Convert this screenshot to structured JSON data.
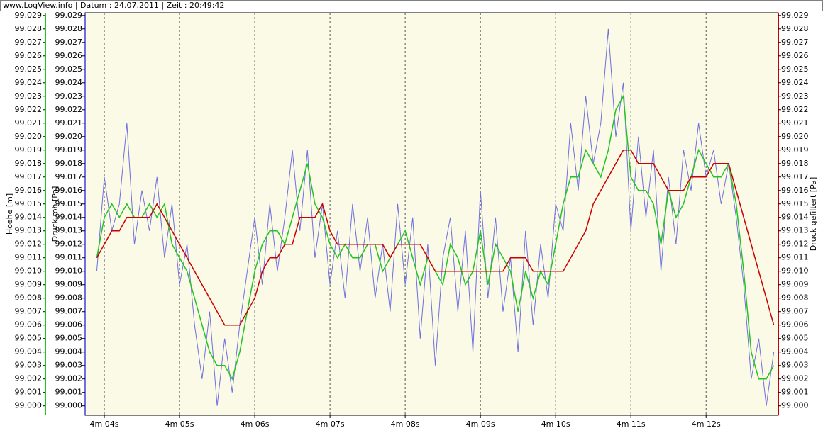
{
  "chart_data": {
    "type": "line",
    "title": "www.LogView.info  |  Datum : 24.07.2011  |  Zeit : 20:49:42",
    "y_label": "Hoehe [m]",
    "y_label_2": "Druck roh [Pa]",
    "y2_label": "Druck gefiltert [Pa]",
    "background": "#fafae6",
    "xlim": [
      243.745,
      252.96
    ],
    "xticks": [
      {
        "value": 244,
        "label": "4m 04s"
      },
      {
        "value": 245,
        "label": "4m 05s"
      },
      {
        "value": 246,
        "label": "4m 06s"
      },
      {
        "value": 247,
        "label": "4m 07s"
      },
      {
        "value": 248,
        "label": "4m 08s"
      },
      {
        "value": 249,
        "label": "4m 09s"
      },
      {
        "value": 250,
        "label": "4m 10s"
      },
      {
        "value": 251,
        "label": "4m 11s"
      },
      {
        "value": 252,
        "label": "4m 12s"
      }
    ],
    "ylim": [
      98.9993,
      99.0292
    ],
    "yticks": [
      {
        "value": 99.0,
        "label": "99.000"
      },
      {
        "value": 99.001,
        "label": "99.001"
      },
      {
        "value": 99.002,
        "label": "99.002"
      },
      {
        "value": 99.003,
        "label": "99.003"
      },
      {
        "value": 99.004,
        "label": "99.004"
      },
      {
        "value": 99.005,
        "label": "99.005"
      },
      {
        "value": 99.006,
        "label": "99.006"
      },
      {
        "value": 99.007,
        "label": "99.007"
      },
      {
        "value": 99.008,
        "label": "99.008"
      },
      {
        "value": 99.009,
        "label": "99.009"
      },
      {
        "value": 99.01,
        "label": "99.010"
      },
      {
        "value": 99.011,
        "label": "99.011"
      },
      {
        "value": 99.012,
        "label": "99.012"
      },
      {
        "value": 99.013,
        "label": "99.013"
      },
      {
        "value": 99.014,
        "label": "99.014"
      },
      {
        "value": 99.015,
        "label": "99.015"
      },
      {
        "value": 99.016,
        "label": "99.016"
      },
      {
        "value": 99.017,
        "label": "99.017"
      },
      {
        "value": 99.018,
        "label": "99.018"
      },
      {
        "value": 99.019,
        "label": "99.019"
      },
      {
        "value": 99.02,
        "label": "99.020"
      },
      {
        "value": 99.021,
        "label": "99.021"
      },
      {
        "value": 99.022,
        "label": "99.022"
      },
      {
        "value": 99.023,
        "label": "99.023"
      },
      {
        "value": 99.024,
        "label": "99.024"
      },
      {
        "value": 99.025,
        "label": "99.025"
      },
      {
        "value": 99.026,
        "label": "99.026"
      },
      {
        "value": 99.027,
        "label": "99.027"
      },
      {
        "value": 99.028,
        "label": "99.028"
      },
      {
        "value": 99.029,
        "label": "99.029"
      }
    ],
    "y2lim": [
      98.9993,
      99.0292
    ],
    "y2ticks": [
      {
        "value": 99.0,
        "label": "99.000"
      },
      {
        "value": 99.001,
        "label": "99.001"
      },
      {
        "value": 99.002,
        "label": "99.002"
      },
      {
        "value": 99.003,
        "label": "99.003"
      },
      {
        "value": 99.004,
        "label": "99.004"
      },
      {
        "value": 99.005,
        "label": "99.005"
      },
      {
        "value": 99.006,
        "label": "99.006"
      },
      {
        "value": 99.007,
        "label": "99.007"
      },
      {
        "value": 99.008,
        "label": "99.008"
      },
      {
        "value": 99.009,
        "label": "99.009"
      },
      {
        "value": 99.01,
        "label": "99.010"
      },
      {
        "value": 99.011,
        "label": "99.011"
      },
      {
        "value": 99.012,
        "label": "99.012"
      },
      {
        "value": 99.013,
        "label": "99.013"
      },
      {
        "value": 99.014,
        "label": "99.014"
      },
      {
        "value": 99.015,
        "label": "99.015"
      },
      {
        "value": 99.016,
        "label": "99.016"
      },
      {
        "value": 99.017,
        "label": "99.017"
      },
      {
        "value": 99.018,
        "label": "99.018"
      },
      {
        "value": 99.019,
        "label": "99.019"
      },
      {
        "value": 99.02,
        "label": "99.020"
      },
      {
        "value": 99.021,
        "label": "99.021"
      },
      {
        "value": 99.022,
        "label": "99.022"
      },
      {
        "value": 99.023,
        "label": "99.023"
      },
      {
        "value": 99.024,
        "label": "99.024"
      },
      {
        "value": 99.025,
        "label": "99.025"
      },
      {
        "value": 99.026,
        "label": "99.026"
      },
      {
        "value": 99.027,
        "label": "99.027"
      },
      {
        "value": 99.028,
        "label": "99.028"
      },
      {
        "value": 99.029,
        "label": "99.029"
      }
    ],
    "x": [
      243.9,
      244.0,
      244.1,
      244.2,
      244.3,
      244.4,
      244.5,
      244.6,
      244.7,
      244.8,
      244.9,
      245.0,
      245.1,
      245.2,
      245.3,
      245.4,
      245.5,
      245.6,
      245.7,
      245.8,
      245.9,
      246.0,
      246.1,
      246.2,
      246.3,
      246.4,
      246.5,
      246.6,
      246.7,
      246.8,
      246.9,
      247.0,
      247.1,
      247.2,
      247.3,
      247.4,
      247.5,
      247.6,
      247.7,
      247.8,
      247.9,
      248.0,
      248.1,
      248.2,
      248.3,
      248.4,
      248.5,
      248.6,
      248.7,
      248.8,
      248.9,
      249.0,
      249.1,
      249.2,
      249.3,
      249.4,
      249.5,
      249.6,
      249.7,
      249.8,
      249.9,
      250.0,
      250.1,
      250.2,
      250.3,
      250.4,
      250.5,
      250.6,
      250.7,
      250.8,
      250.9,
      251.0,
      251.1,
      251.2,
      251.3,
      251.4,
      251.5,
      251.6,
      251.7,
      251.8,
      251.9,
      252.0,
      252.1,
      252.2,
      252.3,
      252.4,
      252.5,
      252.6,
      252.7,
      252.8,
      252.9
    ],
    "series": [
      {
        "name": "Druck roh [Pa]",
        "color": "#6f6fe0",
        "axis": "y",
        "values": [
          99.01,
          99.017,
          99.013,
          99.015,
          99.021,
          99.012,
          99.016,
          99.013,
          99.017,
          99.011,
          99.015,
          99.009,
          99.012,
          99.006,
          99.002,
          99.007,
          99.0,
          99.005,
          99.001,
          99.006,
          99.01,
          99.014,
          99.009,
          99.015,
          99.01,
          99.014,
          99.019,
          99.013,
          99.019,
          99.011,
          99.015,
          99.009,
          99.013,
          99.008,
          99.015,
          99.01,
          99.014,
          99.008,
          99.012,
          99.007,
          99.015,
          99.009,
          99.014,
          99.005,
          99.012,
          99.003,
          99.011,
          99.014,
          99.007,
          99.013,
          99.004,
          99.016,
          99.008,
          99.014,
          99.007,
          99.011,
          99.004,
          99.013,
          99.006,
          99.012,
          99.008,
          99.015,
          99.013,
          99.021,
          99.016,
          99.023,
          99.018,
          99.021,
          99.028,
          99.02,
          99.024,
          99.013,
          99.02,
          99.014,
          99.019,
          99.01,
          99.017,
          99.012,
          99.019,
          99.016,
          99.021,
          99.017,
          99.019,
          99.015,
          99.018,
          99.014,
          99.009,
          99.002,
          99.005,
          99.0,
          99.004
        ]
      },
      {
        "name": "Hoehe [m]",
        "color": "#22c422",
        "axis": "y",
        "values": [
          99.011,
          99.014,
          99.015,
          99.014,
          99.015,
          99.014,
          99.014,
          99.015,
          99.014,
          99.015,
          99.012,
          99.011,
          99.01,
          99.008,
          99.006,
          99.004,
          99.003,
          99.003,
          99.002,
          99.004,
          99.007,
          99.01,
          99.012,
          99.013,
          99.013,
          99.012,
          99.014,
          99.016,
          99.018,
          99.015,
          99.014,
          99.012,
          99.011,
          99.012,
          99.011,
          99.011,
          99.012,
          99.012,
          99.01,
          99.011,
          99.012,
          99.013,
          99.011,
          99.009,
          99.011,
          99.01,
          99.009,
          99.012,
          99.011,
          99.009,
          99.01,
          99.013,
          99.009,
          99.012,
          99.011,
          99.01,
          99.007,
          99.01,
          99.008,
          99.01,
          99.009,
          99.012,
          99.015,
          99.017,
          99.017,
          99.019,
          99.018,
          99.017,
          99.019,
          99.022,
          99.023,
          99.017,
          99.016,
          99.016,
          99.015,
          99.012,
          99.016,
          99.014,
          99.015,
          99.017,
          99.019,
          99.018,
          99.017,
          99.017,
          99.018,
          99.015,
          99.01,
          99.004,
          99.002,
          99.002,
          99.003
        ]
      },
      {
        "name": "Druck gefiltert [Pa]",
        "color": "#cc0000",
        "axis": "y2",
        "values": [
          99.011,
          99.012,
          99.013,
          99.013,
          99.014,
          99.014,
          99.014,
          99.014,
          99.015,
          99.014,
          99.013,
          99.012,
          99.011,
          99.01,
          99.009,
          99.008,
          99.007,
          99.006,
          99.006,
          99.006,
          99.007,
          99.008,
          99.01,
          99.011,
          99.011,
          99.012,
          99.012,
          99.014,
          99.014,
          99.014,
          99.015,
          99.013,
          99.012,
          99.012,
          99.012,
          99.012,
          99.012,
          99.012,
          99.012,
          99.011,
          99.012,
          99.012,
          99.012,
          99.012,
          99.011,
          99.01,
          99.01,
          99.01,
          99.01,
          99.01,
          99.01,
          99.01,
          99.01,
          99.01,
          99.01,
          99.011,
          99.011,
          99.011,
          99.01,
          99.01,
          99.01,
          99.01,
          99.01,
          99.011,
          99.012,
          99.013,
          99.015,
          99.016,
          99.017,
          99.018,
          99.019,
          99.019,
          99.018,
          99.018,
          99.018,
          99.017,
          99.016,
          99.016,
          99.016,
          99.017,
          99.017,
          99.017,
          99.018,
          99.018,
          99.018,
          99.016,
          99.014,
          99.012,
          99.01,
          99.008,
          99.006
        ]
      }
    ]
  }
}
